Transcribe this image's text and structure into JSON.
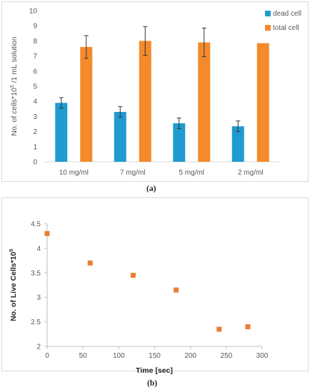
{
  "chart_data": [
    {
      "type": "bar",
      "categories": [
        "10 mg/ml",
        "7 mg/ml",
        "5 mg/ml",
        "2 mg/ml"
      ],
      "series": [
        {
          "name": "dead cell",
          "values": [
            3.9,
            3.3,
            2.55,
            2.35
          ],
          "errors": [
            0.35,
            0.35,
            0.35,
            0.35
          ],
          "color": "#1f9bcf"
        },
        {
          "name": "total cell",
          "values": [
            7.6,
            8.0,
            7.9,
            7.85
          ],
          "errors": [
            0.75,
            0.95,
            0.95,
            0
          ],
          "color": "#f58a2c"
        }
      ],
      "ylabel_main": "No. of cells*10",
      "ylabel_sup": "5",
      "ylabel_rest": " /1 mL solution",
      "ylim": [
        0,
        10
      ],
      "yticks": [
        "0",
        "1",
        "2",
        "3",
        "4",
        "5",
        "6",
        "7",
        "8",
        "9",
        "10"
      ],
      "legend": "top-right",
      "caption": "(a)"
    },
    {
      "type": "scatter",
      "x": [
        0,
        60,
        120,
        180,
        240,
        280
      ],
      "y": [
        4.3,
        3.7,
        3.45,
        3.15,
        2.35,
        2.4
      ],
      "color": "#ed7d31",
      "xlabel": "Time [sec]",
      "ylabel_main": "No. of Live Cells*10",
      "ylabel_sup": "5",
      "xlim": [
        0,
        300
      ],
      "ylim": [
        2,
        4.5
      ],
      "xticks": [
        "0",
        "50",
        "100",
        "150",
        "200",
        "250",
        "300"
      ],
      "yticks": [
        "2",
        "2.5",
        "3",
        "3.5",
        "4",
        "4.5"
      ],
      "caption": "(b)"
    }
  ]
}
